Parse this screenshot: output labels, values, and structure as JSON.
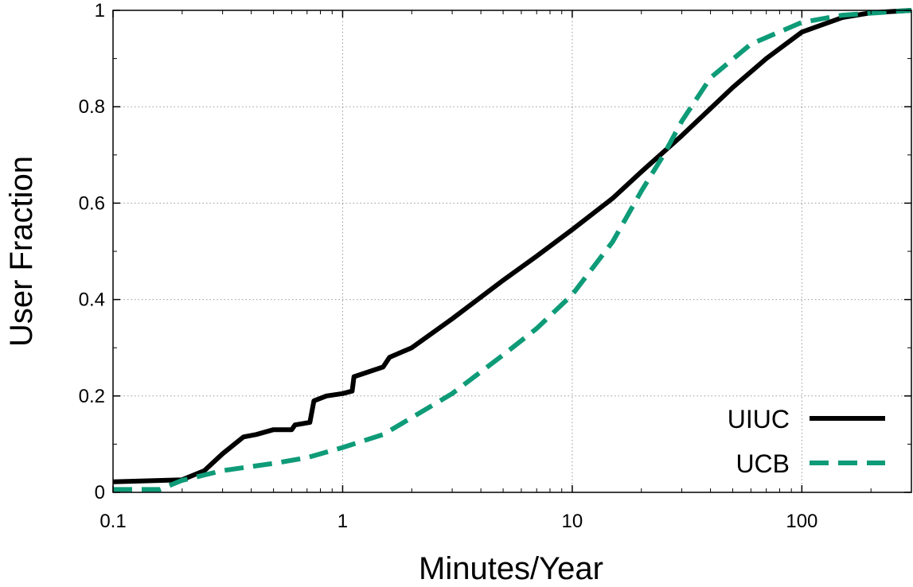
{
  "chart_data": {
    "type": "line",
    "title": "",
    "xlabel": "Minutes/Year",
    "ylabel": "User Fraction",
    "x_scale": "log",
    "xlim": [
      0.1,
      300
    ],
    "ylim": [
      0,
      1
    ],
    "x_ticks": [
      {
        "value": 0.1,
        "label": "0.1"
      },
      {
        "value": 1,
        "label": "1"
      },
      {
        "value": 10,
        "label": "10"
      },
      {
        "value": 100,
        "label": "100"
      }
    ],
    "y_ticks": [
      {
        "value": 0,
        "label": "0"
      },
      {
        "value": 0.2,
        "label": "0.2"
      },
      {
        "value": 0.4,
        "label": "0.4"
      },
      {
        "value": 0.6,
        "label": "0.6"
      },
      {
        "value": 0.8,
        "label": "0.8"
      },
      {
        "value": 1,
        "label": "1"
      }
    ],
    "grid": true,
    "legend_position": "bottom-right",
    "series": [
      {
        "name": "UIUC",
        "color": "#000000",
        "style": "solid",
        "points": [
          [
            0.1,
            0.022
          ],
          [
            0.2,
            0.026
          ],
          [
            0.25,
            0.045
          ],
          [
            0.3,
            0.08
          ],
          [
            0.37,
            0.115
          ],
          [
            0.42,
            0.12
          ],
          [
            0.5,
            0.13
          ],
          [
            0.6,
            0.13
          ],
          [
            0.62,
            0.14
          ],
          [
            0.72,
            0.145
          ],
          [
            0.75,
            0.19
          ],
          [
            0.85,
            0.2
          ],
          [
            1.0,
            0.205
          ],
          [
            1.1,
            0.21
          ],
          [
            1.12,
            0.24
          ],
          [
            1.5,
            0.26
          ],
          [
            1.6,
            0.28
          ],
          [
            2.0,
            0.3
          ],
          [
            3.0,
            0.36
          ],
          [
            5.0,
            0.44
          ],
          [
            7.0,
            0.49
          ],
          [
            10.0,
            0.545
          ],
          [
            15.0,
            0.61
          ],
          [
            20.0,
            0.665
          ],
          [
            30.0,
            0.74
          ],
          [
            50.0,
            0.84
          ],
          [
            70.0,
            0.9
          ],
          [
            100.0,
            0.955
          ],
          [
            150.0,
            0.985
          ],
          [
            200.0,
            0.995
          ],
          [
            300.0,
            1.0
          ]
        ]
      },
      {
        "name": "UCB",
        "color": "#0e9b78",
        "style": "dashed",
        "points": [
          [
            0.1,
            0.006
          ],
          [
            0.16,
            0.006
          ],
          [
            0.2,
            0.025
          ],
          [
            0.3,
            0.045
          ],
          [
            0.5,
            0.06
          ],
          [
            0.7,
            0.072
          ],
          [
            1.0,
            0.093
          ],
          [
            1.5,
            0.12
          ],
          [
            2.0,
            0.155
          ],
          [
            3.0,
            0.205
          ],
          [
            5.0,
            0.285
          ],
          [
            7.0,
            0.34
          ],
          [
            10.0,
            0.41
          ],
          [
            15.0,
            0.52
          ],
          [
            20.0,
            0.625
          ],
          [
            25.0,
            0.7
          ],
          [
            30.0,
            0.77
          ],
          [
            40.0,
            0.86
          ],
          [
            60.0,
            0.93
          ],
          [
            100.0,
            0.975
          ],
          [
            150.0,
            0.99
          ],
          [
            300.0,
            1.0
          ]
        ]
      }
    ]
  }
}
